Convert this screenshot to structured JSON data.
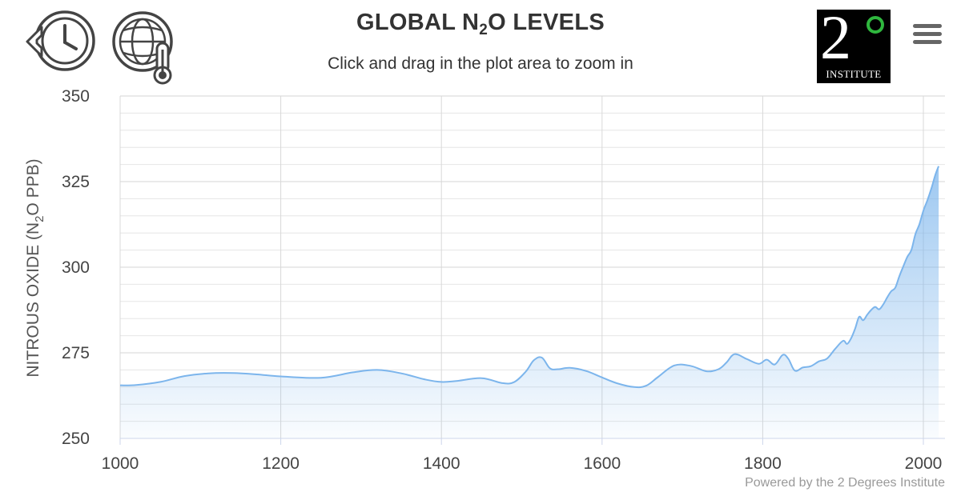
{
  "header": {
    "title_parts": [
      "GLOBAL N",
      "2",
      "O LEVELS"
    ],
    "subtitle": "Click and drag in the plot area to zoom in",
    "logo_numeral": "2",
    "logo_text": "INSTITUTE"
  },
  "footer": {
    "credit": "Powered by the 2 Degrees Institute"
  },
  "colors": {
    "line": "#7cb5ec",
    "grid": "#d8d8d8",
    "logo_ring": "#2fb73e",
    "menu": "#666666"
  },
  "icons": {
    "history": "history-clock-icon",
    "climate": "globe-thermometer-icon",
    "menu": "hamburger-menu-icon"
  },
  "chart_data": {
    "type": "area",
    "title": "GLOBAL N2O LEVELS",
    "subtitle": "Click and drag in the plot area to zoom in",
    "xlabel": "",
    "ylabel_parts": [
      "NITROUS OXIDE (N",
      "2",
      "O PPB)"
    ],
    "xlim": [
      1000,
      2019
    ],
    "ylim": [
      250,
      350
    ],
    "x_ticks": [
      "1000",
      "1200",
      "1400",
      "1600",
      "1800",
      "2000"
    ],
    "y_ticks": [
      "250",
      "275",
      "300",
      "325",
      "350"
    ],
    "grid": true,
    "legend": "none",
    "series": [
      {
        "x": [
          1000,
          1020,
          1050,
          1080,
          1110,
          1140,
          1170,
          1200,
          1250,
          1290,
          1320,
          1350,
          1380,
          1400,
          1420,
          1450,
          1475,
          1490,
          1505,
          1515,
          1525,
          1535,
          1545,
          1560,
          1580,
          1600,
          1620,
          1640,
          1655,
          1670,
          1690,
          1710,
          1730,
          1745,
          1755,
          1765,
          1780,
          1795,
          1805,
          1815,
          1825,
          1832,
          1840,
          1850,
          1860,
          1870,
          1880,
          1890,
          1900,
          1905,
          1910,
          1915,
          1920,
          1925,
          1930,
          1935,
          1940,
          1945,
          1950,
          1955,
          1960,
          1965,
          1970,
          1975,
          1980,
          1985,
          1990,
          1995,
          2000,
          2005,
          2010,
          2015,
          2019
        ],
        "values": [
          265.5,
          265.6,
          266.5,
          268.2,
          269,
          269.1,
          268.7,
          268.1,
          267.7,
          269.3,
          270,
          269,
          267.2,
          266.5,
          266.8,
          267.6,
          266.2,
          266.4,
          269.5,
          272.8,
          273.6,
          270.5,
          270.2,
          270.6,
          269.7,
          267.8,
          266,
          265,
          265.4,
          268,
          271.3,
          271.2,
          269.6,
          270.2,
          272.2,
          274.6,
          273.2,
          271.8,
          273,
          271.6,
          274.4,
          273.2,
          269.8,
          270.7,
          271.1,
          272.5,
          273.3,
          276.1,
          278.5,
          277.6,
          279.2,
          282,
          285.5,
          284.5,
          286.1,
          287.5,
          288.4,
          287.7,
          289.1,
          291.2,
          293,
          294,
          297.3,
          300.2,
          303,
          305,
          309.6,
          312.5,
          316.5,
          319.5,
          323,
          327,
          329.5
        ]
      }
    ]
  }
}
